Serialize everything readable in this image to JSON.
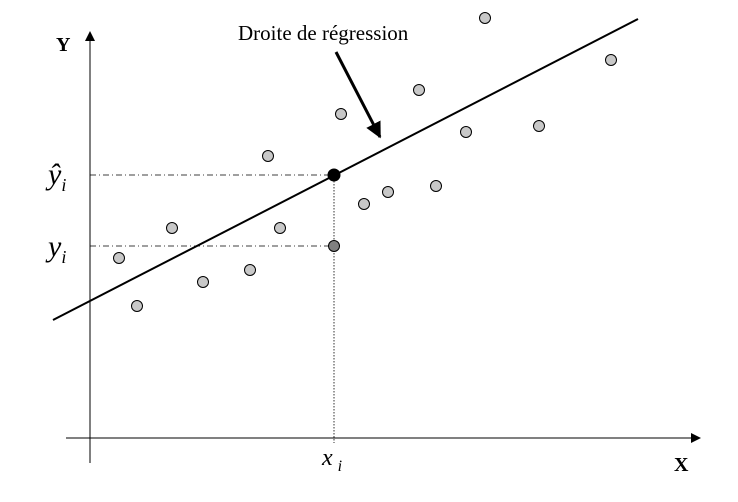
{
  "diagram": {
    "annotation": "Droite de régression",
    "axis_x": "X",
    "axis_y": "Y",
    "label_xi": "x",
    "label_yi": "y",
    "label_yhat": "ŷ",
    "subscript": "i",
    "colors": {
      "point_fill": "#c8c8c8",
      "point_stroke": "#000000",
      "observed_point": "#808080",
      "fitted_point": "#000000"
    }
  }
}
